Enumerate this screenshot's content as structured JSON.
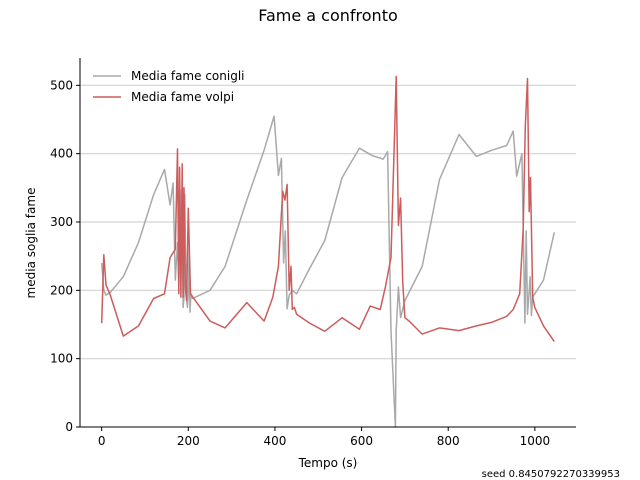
{
  "chart_data": {
    "type": "line",
    "title": "Fame a confronto",
    "xlabel": "Tempo (s)",
    "ylabel": "media soglia fame",
    "xlim": [
      -50,
      1095
    ],
    "ylim": [
      0,
      540
    ],
    "xticks": [
      0,
      200,
      400,
      600,
      800,
      1000
    ],
    "yticks": [
      0,
      100,
      200,
      300,
      400,
      500
    ],
    "grid": "horizontal",
    "legend": "upper left",
    "annotation": "seed 0.8450792270339953",
    "series": [
      {
        "name": "Media fame conigli",
        "color": "#a9a9a9",
        "x": [
          0,
          5,
          10,
          20,
          50,
          85,
          120,
          145,
          158,
          165,
          170,
          175,
          178,
          181,
          183,
          186,
          188,
          190,
          192,
          195,
          198,
          200,
          202,
          204,
          206,
          210,
          250,
          285,
          335,
          375,
          398,
          408,
          415,
          420,
          424,
          428,
          433,
          440,
          450,
          480,
          515,
          555,
          595,
          625,
          650,
          660,
          668,
          678,
          680,
          685,
          690,
          700,
          740,
          780,
          825,
          865,
          900,
          935,
          950,
          958,
          970,
          977,
          980,
          983,
          986,
          989,
          992,
          995,
          1000,
          1020,
          1045
        ],
        "y": [
          240,
          200,
          193,
          197,
          220,
          270,
          340,
          377,
          325,
          357,
          215,
          270,
          205,
          347,
          223,
          357,
          175,
          190,
          340,
          193,
          175,
          195,
          260,
          168,
          195,
          188,
          200,
          235,
          332,
          405,
          455,
          368,
          393,
          240,
          287,
          173,
          193,
          200,
          195,
          232,
          273,
          365,
          408,
          397,
          392,
          403,
          140,
          0,
          140,
          205,
          160,
          185,
          235,
          362,
          428,
          396,
          405,
          412,
          433,
          367,
          400,
          152,
          287,
          165,
          190,
          220,
          163,
          190,
          195,
          215,
          285
        ]
      },
      {
        "name": "Media fame volpi",
        "color": "#cd5c5c",
        "x": [
          0,
          5,
          10,
          20,
          50,
          85,
          120,
          145,
          158,
          170,
          175,
          178,
          180,
          183,
          186,
          188,
          190,
          193,
          196,
          200,
          205,
          250,
          285,
          335,
          375,
          395,
          408,
          418,
          423,
          428,
          433,
          437,
          440,
          445,
          450,
          480,
          515,
          555,
          595,
          620,
          643,
          655,
          668,
          680,
          685,
          690,
          695,
          700,
          710,
          740,
          780,
          825,
          865,
          900,
          935,
          950,
          965,
          973,
          978,
          983,
          987,
          990,
          995,
          1000,
          1020,
          1045
        ],
        "y": [
          152,
          252,
          208,
          193,
          133,
          148,
          188,
          195,
          248,
          260,
          407,
          195,
          380,
          190,
          385,
          190,
          350,
          205,
          185,
          320,
          195,
          155,
          145,
          182,
          155,
          190,
          235,
          345,
          332,
          355,
          200,
          235,
          172,
          175,
          165,
          152,
          140,
          160,
          143,
          177,
          172,
          205,
          248,
          513,
          295,
          335,
          213,
          160,
          155,
          136,
          145,
          141,
          148,
          153,
          162,
          172,
          195,
          290,
          440,
          510,
          315,
          365,
          190,
          175,
          148,
          125
        ]
      }
    ]
  }
}
